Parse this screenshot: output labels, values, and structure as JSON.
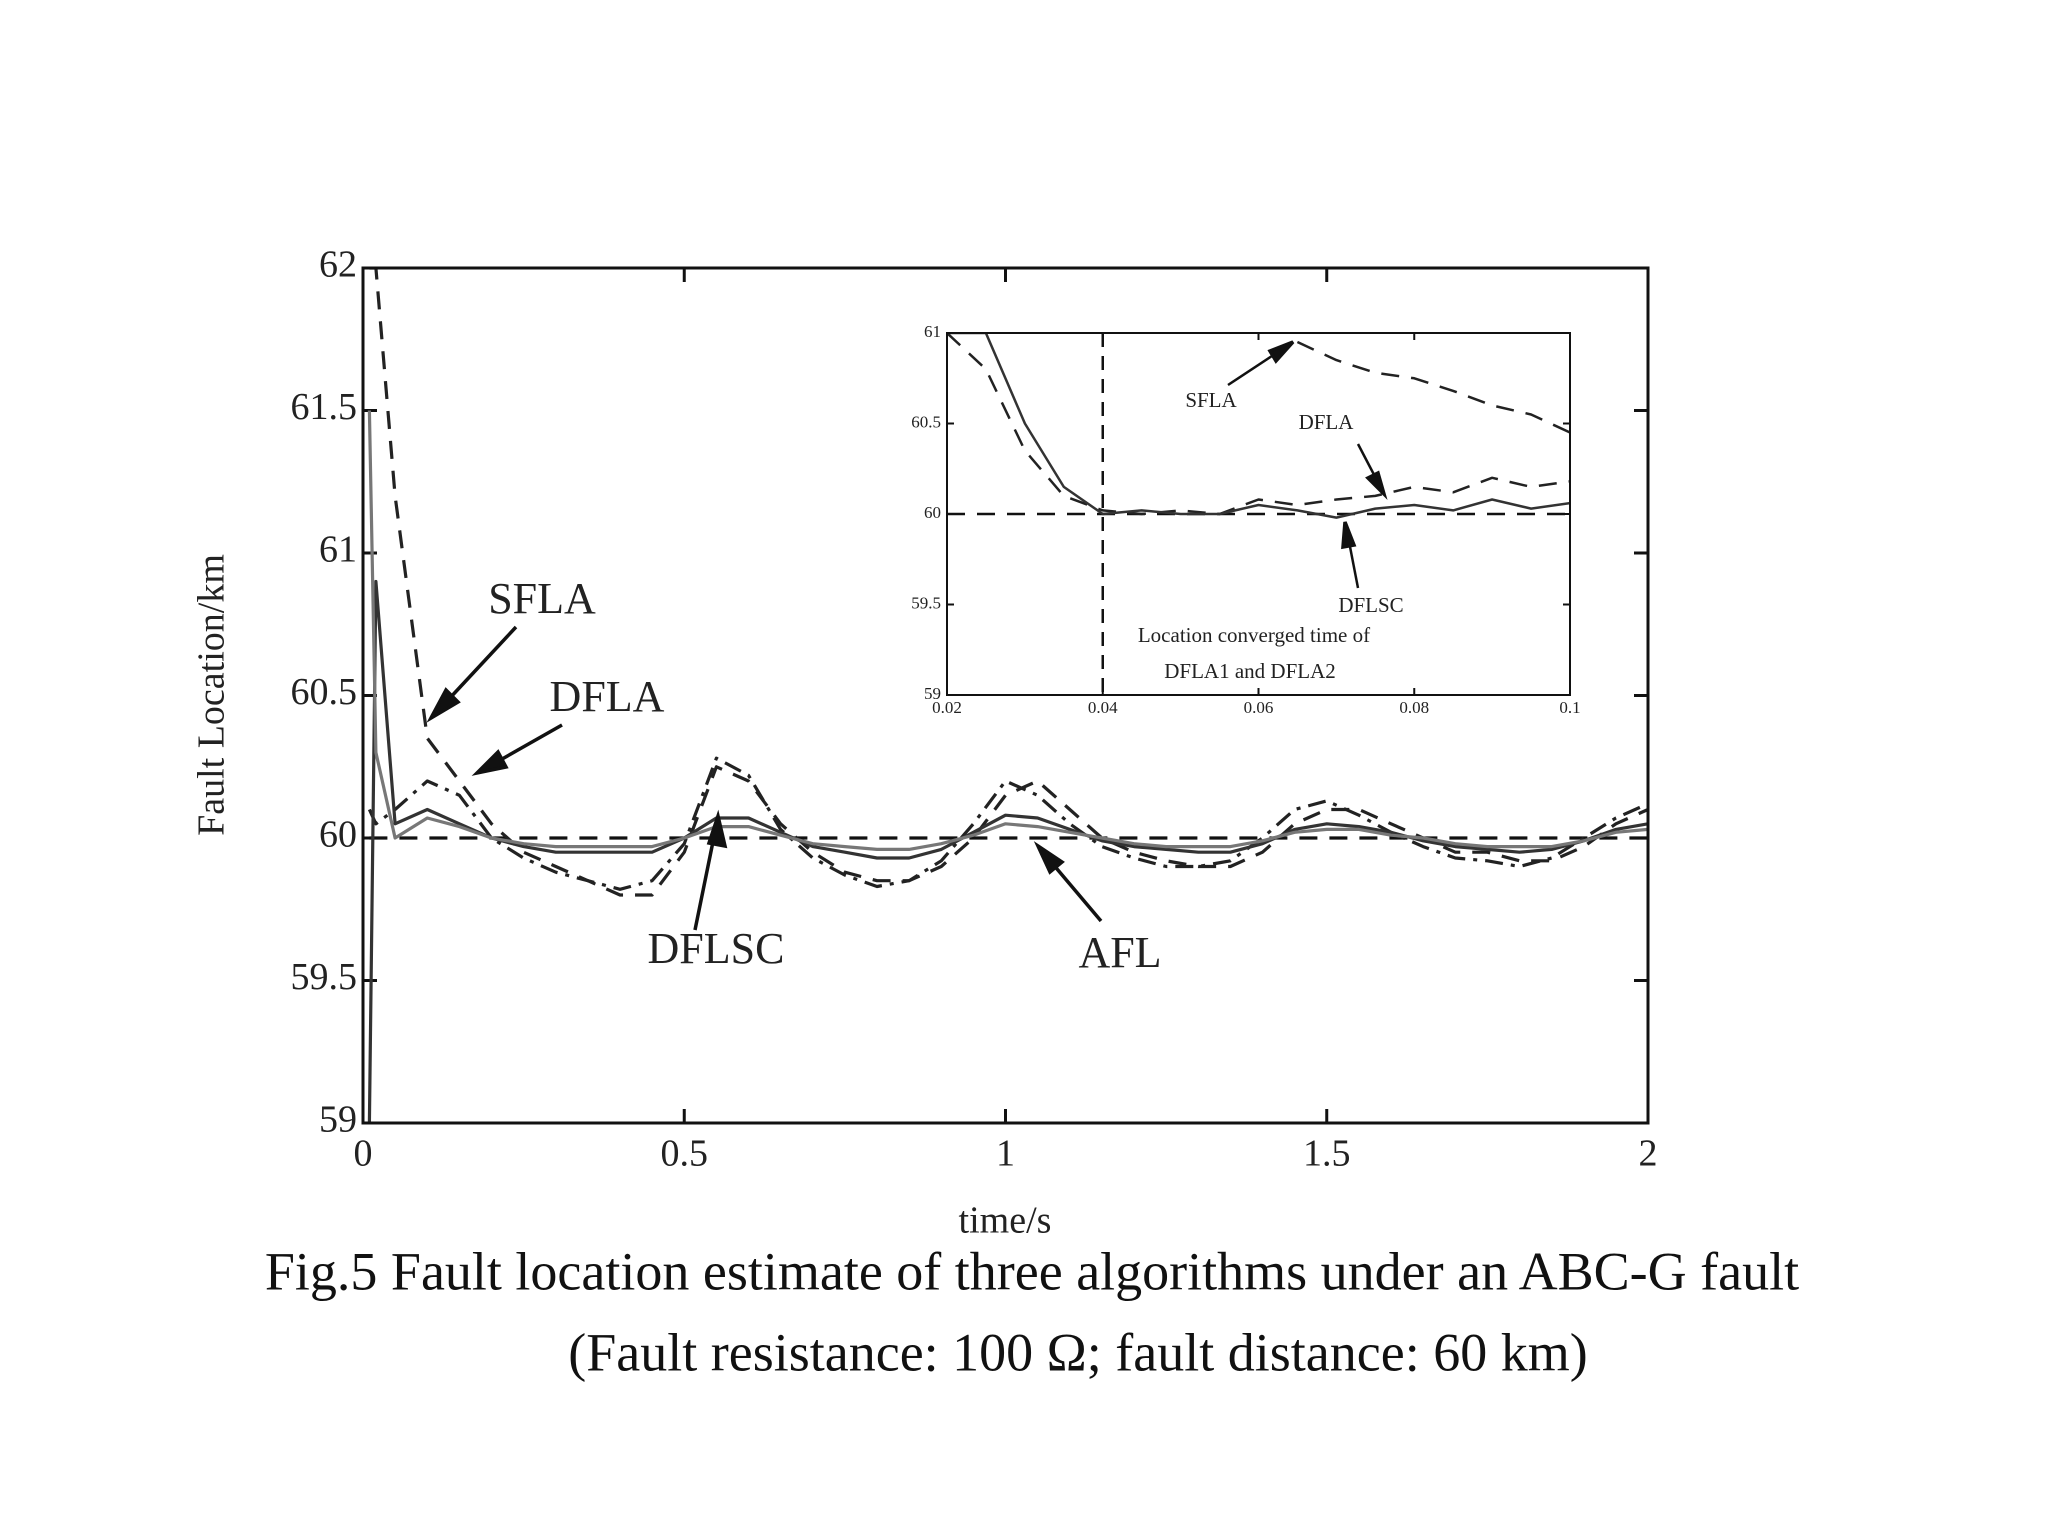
{
  "chart_data": [
    {
      "type": "line",
      "xlabel": "time/s",
      "ylabel": "Fault Location/km",
      "caption": [
        "Fig.5 Fault location estimate of three algorithms under an ABC-G fault",
        "(Fault resistance: 100 Ω; fault distance: 60 km)"
      ],
      "annotations": [
        "SFLA",
        "DFLA",
        "DFLSC",
        "AFL"
      ],
      "xlim": [
        0,
        2
      ],
      "ylim": [
        59,
        62
      ],
      "xticks": [
        0,
        0.5,
        1,
        1.5,
        2
      ],
      "yticks": [
        59,
        59.5,
        60,
        60.5,
        61,
        61.5,
        62
      ],
      "x": [
        0.01,
        0.02,
        0.05,
        0.1,
        0.15,
        0.2,
        0.25,
        0.3,
        0.35,
        0.4,
        0.45,
        0.5,
        0.55,
        0.6,
        0.65,
        0.7,
        0.75,
        0.8,
        0.85,
        0.9,
        0.95,
        1.0,
        1.05,
        1.1,
        1.15,
        1.2,
        1.25,
        1.3,
        1.35,
        1.4,
        1.45,
        1.5,
        1.55,
        1.6,
        1.65,
        1.7,
        1.75,
        1.8,
        1.85,
        1.9,
        1.95,
        2.0
      ],
      "series": [
        {
          "color": "#111",
          "style": "dashed",
          "values": [
            60,
            60,
            60,
            60,
            60,
            60,
            60,
            60,
            60,
            60,
            60,
            60,
            60,
            60,
            60,
            60,
            60,
            60,
            60,
            60,
            60,
            60,
            60,
            60,
            60,
            60,
            60,
            60,
            60,
            60,
            60,
            60,
            60,
            60,
            60,
            60,
            60,
            60,
            60,
            60,
            60,
            60
          ]
        },
        {
          "color": "#222",
          "style": "dashed",
          "values": [
            62,
            62,
            61.2,
            60.35,
            60.2,
            60.05,
            59.95,
            59.9,
            59.85,
            59.8,
            59.8,
            59.95,
            60.25,
            60.2,
            60.05,
            59.95,
            59.88,
            59.85,
            59.85,
            59.9,
            60.0,
            60.15,
            60.2,
            60.1,
            60.0,
            59.95,
            59.92,
            59.9,
            59.9,
            59.95,
            60.05,
            60.1,
            60.1,
            60.05,
            60.0,
            59.95,
            59.95,
            59.92,
            59.92,
            59.97,
            60.05,
            60.1
          ]
        },
        {
          "color": "#222",
          "style": "dashdot",
          "values": [
            60.1,
            60.05,
            60.1,
            60.2,
            60.15,
            60.0,
            59.93,
            59.88,
            59.85,
            59.82,
            59.85,
            59.98,
            60.28,
            60.22,
            60.03,
            59.93,
            59.87,
            59.83,
            59.85,
            59.92,
            60.05,
            60.2,
            60.15,
            60.05,
            59.97,
            59.93,
            59.9,
            59.9,
            59.92,
            60.0,
            60.1,
            60.13,
            60.08,
            60.02,
            59.97,
            59.93,
            59.92,
            59.9,
            59.93,
            60.0,
            60.07,
            60.12
          ]
        },
        {
          "color": "#333",
          "style": "solid",
          "values": [
            59,
            60.9,
            60.05,
            60.1,
            60.05,
            60.0,
            59.97,
            59.95,
            59.95,
            59.95,
            59.95,
            60.0,
            60.07,
            60.07,
            60.02,
            59.97,
            59.95,
            59.93,
            59.93,
            59.96,
            60.02,
            60.08,
            60.07,
            60.03,
            59.99,
            59.97,
            59.96,
            59.95,
            59.95,
            59.98,
            60.03,
            60.05,
            60.04,
            60.02,
            59.99,
            59.97,
            59.96,
            59.95,
            59.96,
            59.99,
            60.03,
            60.05
          ]
        },
        {
          "color": "#777",
          "style": "solid",
          "values": [
            61.5,
            60.3,
            60.0,
            60.07,
            60.04,
            60.0,
            59.98,
            59.97,
            59.97,
            59.97,
            59.97,
            60.0,
            60.04,
            60.04,
            60.01,
            59.98,
            59.97,
            59.96,
            59.96,
            59.98,
            60.01,
            60.05,
            60.04,
            60.02,
            60.0,
            59.98,
            59.97,
            59.97,
            59.97,
            59.99,
            60.02,
            60.03,
            60.03,
            60.01,
            60.0,
            59.98,
            59.97,
            59.97,
            59.97,
            59.99,
            60.02,
            60.03
          ]
        }
      ]
    },
    {
      "type": "line",
      "annotations": [
        "SFLA",
        "DFLA",
        "DFLSC",
        "Location converged time of",
        "DFLA1 and DFLA2"
      ],
      "marker_x": 0.04,
      "xlim": [
        0.02,
        0.1
      ],
      "ylim": [
        59,
        61
      ],
      "xticks": [
        {
          "value": 0.02,
          "label": "0.02"
        },
        {
          "value": 0.04,
          "label": "0.04"
        },
        {
          "value": 0.06,
          "label": "0.06"
        },
        {
          "value": 0.08,
          "label": "0.08"
        },
        0.1
      ],
      "yticks": [
        59,
        59.5,
        60,
        60.5,
        61
      ],
      "x": [
        0.02,
        0.025,
        0.03,
        0.035,
        0.04,
        0.045,
        0.05,
        0.055,
        0.06,
        0.065,
        0.07,
        0.075,
        0.08,
        0.085,
        0.09,
        0.095,
        0.1
      ],
      "series": [
        {
          "color": "#111",
          "style": "dashed",
          "values": [
            60,
            60,
            60,
            60,
            60,
            60,
            60,
            60,
            60,
            60,
            60,
            60,
            60,
            60,
            60,
            60,
            60
          ]
        },
        {
          "color": "#222",
          "style": "dashed",
          "values": [
            null,
            null,
            null,
            null,
            null,
            null,
            null,
            null,
            null,
            60.95,
            60.85,
            60.78,
            60.75,
            60.68,
            60.6,
            60.55,
            60.45
          ]
        },
        {
          "color": "#222",
          "style": "dashed",
          "values": [
            61,
            60.8,
            60.35,
            60.1,
            60.02,
            60.0,
            60.02,
            60.0,
            60.08,
            60.05,
            60.08,
            60.1,
            60.15,
            60.12,
            60.2,
            60.15,
            60.18
          ]
        },
        {
          "color": "#333",
          "style": "solid",
          "values": [
            61,
            61,
            60.5,
            60.15,
            60.0,
            60.02,
            60.0,
            60.0,
            60.05,
            60.02,
            59.98,
            60.03,
            60.05,
            60.02,
            60.08,
            60.03,
            60.06
          ]
        }
      ]
    }
  ]
}
